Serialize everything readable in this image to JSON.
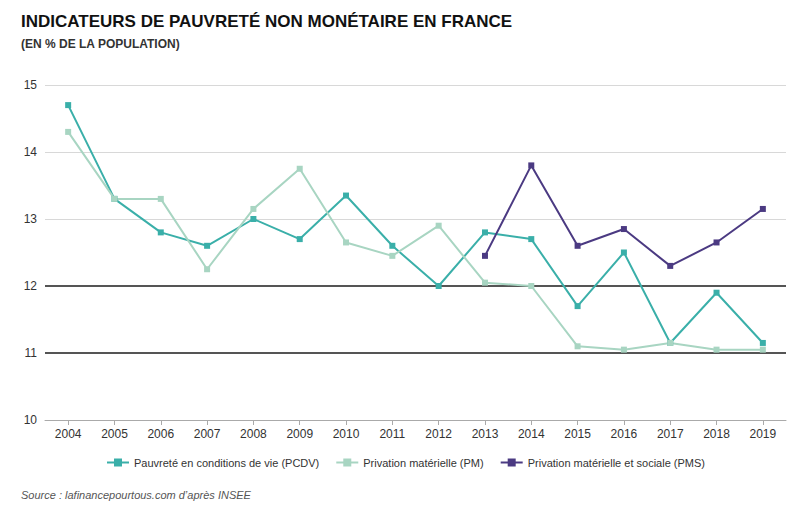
{
  "chart_data": {
    "type": "line",
    "title": "INDICATEURS DE PAUVRETÉ NON MONÉTAIRE EN FRANCE",
    "subtitle": "(EN % DE LA POPULATION)",
    "source": "Source : lafinancepourtous.com d’après INSEE",
    "categories": [
      2004,
      2005,
      2006,
      2007,
      2008,
      2009,
      2010,
      2011,
      2012,
      2013,
      2014,
      2015,
      2016,
      2017,
      2018,
      2019
    ],
    "series": [
      {
        "name": "Pauvreté en conditions de vie (PCDV)",
        "color": "#3aafa9",
        "values": [
          14.7,
          13.3,
          12.8,
          12.6,
          13.0,
          12.7,
          13.35,
          12.6,
          12.0,
          12.8,
          12.7,
          11.7,
          12.5,
          11.15,
          11.9,
          11.15
        ]
      },
      {
        "name": "Privation matérielle (PM)",
        "color": "#a8d5c2",
        "values": [
          14.3,
          13.3,
          13.3,
          12.25,
          13.15,
          13.75,
          12.65,
          12.45,
          12.9,
          12.05,
          12.0,
          11.1,
          11.05,
          11.15,
          11.05,
          11.05
        ]
      },
      {
        "name": "Privation matérielle et sociale (PMS)",
        "color": "#4b3a82",
        "values": [
          null,
          null,
          null,
          null,
          null,
          null,
          null,
          null,
          null,
          12.45,
          13.8,
          12.6,
          12.85,
          12.3,
          12.65,
          13.15
        ]
      }
    ],
    "marker": "square",
    "ylim": [
      10,
      15
    ],
    "yticks": [
      10,
      11,
      12,
      13,
      14,
      15
    ],
    "grid": true,
    "legend": "bottom",
    "hlines": [
      11,
      12
    ],
    "hline_color": "#555555"
  }
}
